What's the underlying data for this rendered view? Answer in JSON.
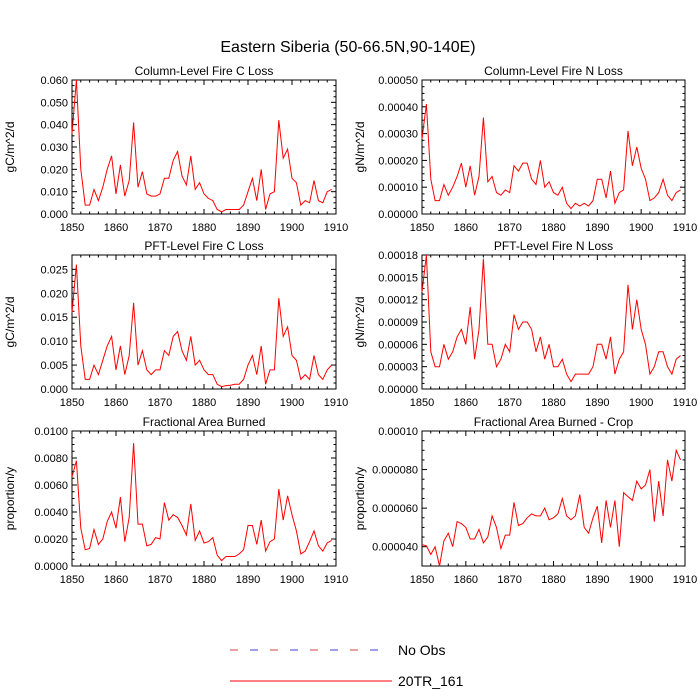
{
  "figure": {
    "title": "Eastern Siberia (50-66.5N,90-140E)",
    "legend": [
      {
        "label": "No Obs",
        "style": "dashed",
        "colors": [
          "#d04040",
          "#4040d0"
        ]
      },
      {
        "label": "20TR_161",
        "style": "solid",
        "color": "#ff0000"
      }
    ]
  },
  "chart_data": [
    {
      "type": "line",
      "title": "Column-Level Fire C Loss",
      "xlabel": "",
      "ylabel": "gC/m^2/d",
      "xlim": [
        1850,
        1910
      ],
      "ylim": [
        0,
        0.06
      ],
      "xticks": [
        1850,
        1860,
        1870,
        1880,
        1890,
        1900,
        1910
      ],
      "xtick_labels": [
        "1850",
        "1860",
        "1870",
        "1880",
        "1890",
        "1900",
        "1910"
      ],
      "yticks": [
        0,
        0.01,
        0.02,
        0.03,
        0.04,
        0.05,
        0.06
      ],
      "ytick_labels": [
        "0.000",
        "0.010",
        "0.020",
        "0.030",
        "0.040",
        "0.050",
        "0.060"
      ],
      "series": [
        {
          "name": "20TR_161",
          "color": "#ff0000",
          "x": [
            1850,
            1851,
            1852,
            1853,
            1854,
            1855,
            1856,
            1857,
            1858,
            1859,
            1860,
            1861,
            1862,
            1863,
            1864,
            1865,
            1866,
            1867,
            1868,
            1869,
            1870,
            1871,
            1872,
            1873,
            1874,
            1875,
            1876,
            1877,
            1878,
            1879,
            1880,
            1881,
            1882,
            1883,
            1884,
            1885,
            1886,
            1887,
            1888,
            1889,
            1890,
            1891,
            1892,
            1893,
            1894,
            1895,
            1896,
            1897,
            1898,
            1899,
            1900,
            1901,
            1902,
            1903,
            1904,
            1905,
            1906,
            1907,
            1908,
            1909
          ],
          "y": [
            0.036,
            0.06,
            0.02,
            0.004,
            0.004,
            0.011,
            0.006,
            0.012,
            0.02,
            0.026,
            0.009,
            0.022,
            0.008,
            0.015,
            0.041,
            0.012,
            0.019,
            0.009,
            0.008,
            0.008,
            0.009,
            0.016,
            0.016,
            0.024,
            0.028,
            0.017,
            0.013,
            0.026,
            0.011,
            0.014,
            0.009,
            0.007,
            0.006,
            0.002,
            0.001,
            0.002,
            0.002,
            0.002,
            0.002,
            0.004,
            0.01,
            0.016,
            0.006,
            0.02,
            0.002,
            0.009,
            0.01,
            0.042,
            0.025,
            0.029,
            0.016,
            0.014,
            0.004,
            0.006,
            0.005,
            0.015,
            0.006,
            0.005,
            0.01,
            0.011
          ]
        }
      ]
    },
    {
      "type": "line",
      "title": "Column-Level Fire N Loss",
      "xlabel": "",
      "ylabel": "gN/m^2/d",
      "xlim": [
        1850,
        1910
      ],
      "ylim": [
        0,
        0.0005
      ],
      "xticks": [
        1850,
        1860,
        1870,
        1880,
        1890,
        1900,
        1910
      ],
      "xtick_labels": [
        "1850",
        "1860",
        "1870",
        "1880",
        "1890",
        "1900",
        "1910"
      ],
      "yticks": [
        0,
        0.0001,
        0.0002,
        0.0003,
        0.0004,
        0.0005
      ],
      "ytick_labels": [
        "0.00000",
        "0.00010",
        "0.00020",
        "0.00030",
        "0.00040",
        "0.00050"
      ],
      "series": [
        {
          "name": "20TR_161",
          "color": "#ff0000",
          "x": [
            1850,
            1851,
            1852,
            1853,
            1854,
            1855,
            1856,
            1857,
            1858,
            1859,
            1860,
            1861,
            1862,
            1863,
            1864,
            1865,
            1866,
            1867,
            1868,
            1869,
            1870,
            1871,
            1872,
            1873,
            1874,
            1875,
            1876,
            1877,
            1878,
            1879,
            1880,
            1881,
            1882,
            1883,
            1884,
            1885,
            1886,
            1887,
            1888,
            1889,
            1890,
            1891,
            1892,
            1893,
            1894,
            1895,
            1896,
            1897,
            1898,
            1899,
            1900,
            1901,
            1902,
            1903,
            1904,
            1905,
            1906,
            1907,
            1908,
            1909
          ],
          "y": [
            0.00028,
            0.00041,
            0.00013,
            5e-05,
            5e-05,
            0.00011,
            7e-05,
            0.0001,
            0.00014,
            0.00019,
            0.0001,
            0.00018,
            7e-05,
            0.00014,
            0.00036,
            0.00012,
            0.00014,
            8e-05,
            7e-05,
            9e-05,
            8e-05,
            0.00018,
            0.00016,
            0.00019,
            0.00019,
            0.00013,
            0.00011,
            0.0002,
            0.0001,
            0.00012,
            8e-05,
            7e-05,
            0.0001,
            4e-05,
            2e-05,
            4e-05,
            3e-05,
            4e-05,
            3e-05,
            5e-05,
            0.00013,
            0.00013,
            6e-05,
            0.00016,
            4e-05,
            8e-05,
            9e-05,
            0.00031,
            0.00018,
            0.00025,
            0.00017,
            0.00013,
            5e-05,
            6e-05,
            8e-05,
            0.00013,
            7e-05,
            5e-05,
            8e-05,
            9e-05
          ]
        }
      ]
    },
    {
      "type": "line",
      "title": "PFT-Level Fire C Loss",
      "xlabel": "",
      "ylabel": "gC/m^2/d",
      "xlim": [
        1850,
        1910
      ],
      "ylim": [
        0,
        0.028
      ],
      "xticks": [
        1850,
        1860,
        1870,
        1880,
        1890,
        1900,
        1910
      ],
      "xtick_labels": [
        "1850",
        "1860",
        "1870",
        "1880",
        "1890",
        "1900",
        "1910"
      ],
      "yticks": [
        0,
        0.005,
        0.01,
        0.015,
        0.02,
        0.025
      ],
      "ytick_labels": [
        "0.000",
        "0.005",
        "0.010",
        "0.015",
        "0.020",
        "0.025"
      ],
      "series": [
        {
          "name": "20TR_161",
          "color": "#ff0000",
          "x": [
            1850,
            1851,
            1852,
            1853,
            1854,
            1855,
            1856,
            1857,
            1858,
            1859,
            1860,
            1861,
            1862,
            1863,
            1864,
            1865,
            1866,
            1867,
            1868,
            1869,
            1870,
            1871,
            1872,
            1873,
            1874,
            1875,
            1876,
            1877,
            1878,
            1879,
            1880,
            1881,
            1882,
            1883,
            1884,
            1885,
            1886,
            1887,
            1888,
            1889,
            1890,
            1891,
            1892,
            1893,
            1894,
            1895,
            1896,
            1897,
            1898,
            1899,
            1900,
            1901,
            1902,
            1903,
            1904,
            1905,
            1906,
            1907,
            1908,
            1909
          ],
          "y": [
            0.016,
            0.026,
            0.009,
            0.002,
            0.002,
            0.005,
            0.003,
            0.006,
            0.009,
            0.011,
            0.004,
            0.009,
            0.003,
            0.007,
            0.018,
            0.005,
            0.008,
            0.004,
            0.003,
            0.004,
            0.004,
            0.008,
            0.007,
            0.011,
            0.012,
            0.008,
            0.006,
            0.011,
            0.005,
            0.006,
            0.004,
            0.003,
            0.003,
            0.001,
            0.0005,
            0.0007,
            0.0008,
            0.001,
            0.001,
            0.002,
            0.005,
            0.007,
            0.003,
            0.009,
            0.001,
            0.004,
            0.004,
            0.019,
            0.011,
            0.013,
            0.007,
            0.006,
            0.002,
            0.003,
            0.002,
            0.007,
            0.003,
            0.002,
            0.004,
            0.005
          ]
        }
      ]
    },
    {
      "type": "line",
      "title": "PFT-Level Fire N Loss",
      "xlabel": "",
      "ylabel": "gN/m^2/d",
      "xlim": [
        1850,
        1910
      ],
      "ylim": [
        0,
        0.00018
      ],
      "xticks": [
        1850,
        1860,
        1870,
        1880,
        1890,
        1900,
        1910
      ],
      "xtick_labels": [
        "1850",
        "1860",
        "1870",
        "1880",
        "1890",
        "1900",
        "1910"
      ],
      "yticks": [
        0,
        3e-05,
        6e-05,
        9e-05,
        0.00012,
        0.00015,
        0.00018
      ],
      "ytick_labels": [
        "0.00000",
        "0.00003",
        "0.00006",
        "0.00009",
        "0.00012",
        "0.00015",
        "0.00018"
      ],
      "series": [
        {
          "name": "20TR_161",
          "color": "#ff0000",
          "x": [
            1850,
            1851,
            1852,
            1853,
            1854,
            1855,
            1856,
            1857,
            1858,
            1859,
            1860,
            1861,
            1862,
            1863,
            1864,
            1865,
            1866,
            1867,
            1868,
            1869,
            1870,
            1871,
            1872,
            1873,
            1874,
            1875,
            1876,
            1877,
            1878,
            1879,
            1880,
            1881,
            1882,
            1883,
            1884,
            1885,
            1886,
            1887,
            1888,
            1889,
            1890,
            1891,
            1892,
            1893,
            1894,
            1895,
            1896,
            1897,
            1898,
            1899,
            1900,
            1901,
            1902,
            1903,
            1904,
            1905,
            1906,
            1907,
            1908,
            1909
          ],
          "y": [
            0.00013,
            0.00018,
            5e-05,
            3e-05,
            3e-05,
            6e-05,
            4e-05,
            5e-05,
            7e-05,
            8e-05,
            6e-05,
            0.00011,
            4e-05,
            8e-05,
            0.000175,
            6e-05,
            6e-05,
            3e-05,
            4e-05,
            6e-05,
            5e-05,
            0.0001,
            8e-05,
            9e-05,
            9e-05,
            8e-05,
            5e-05,
            7e-05,
            4e-05,
            6e-05,
            3e-05,
            3e-05,
            4e-05,
            2e-05,
            1e-05,
            2e-05,
            2e-05,
            2e-05,
            2e-05,
            3e-05,
            6e-05,
            6e-05,
            4e-05,
            7e-05,
            2e-05,
            4e-05,
            5e-05,
            0.00014,
            8e-05,
            0.00012,
            8e-05,
            6e-05,
            2e-05,
            3e-05,
            5e-05,
            5e-05,
            3e-05,
            2e-05,
            4e-05,
            4.5e-05
          ]
        }
      ]
    },
    {
      "type": "line",
      "title": "Fractional Area Burned",
      "xlabel": "",
      "ylabel": "proportion/y",
      "xlim": [
        1850,
        1910
      ],
      "ylim": [
        0,
        0.01
      ],
      "xticks": [
        1850,
        1860,
        1870,
        1880,
        1890,
        1900,
        1910
      ],
      "xtick_labels": [
        "1850",
        "1860",
        "1870",
        "1880",
        "1890",
        "1900",
        "1910"
      ],
      "yticks": [
        0,
        0.002,
        0.004,
        0.006,
        0.008,
        0.01
      ],
      "ytick_labels": [
        "0.0000",
        "0.0020",
        "0.0040",
        "0.0060",
        "0.0080",
        "0.0100"
      ],
      "series": [
        {
          "name": "20TR_161",
          "color": "#ff0000",
          "x": [
            1850,
            1851,
            1852,
            1853,
            1854,
            1855,
            1856,
            1857,
            1858,
            1859,
            1860,
            1861,
            1862,
            1863,
            1864,
            1865,
            1866,
            1867,
            1868,
            1869,
            1870,
            1871,
            1872,
            1873,
            1874,
            1875,
            1876,
            1877,
            1878,
            1879,
            1880,
            1881,
            1882,
            1883,
            1884,
            1885,
            1886,
            1887,
            1888,
            1889,
            1890,
            1891,
            1892,
            1893,
            1894,
            1895,
            1896,
            1897,
            1898,
            1899,
            1900,
            1901,
            1902,
            1903,
            1904,
            1905,
            1906,
            1907,
            1908,
            1909
          ],
          "y": [
            0.0066,
            0.0078,
            0.0028,
            0.0012,
            0.0013,
            0.0027,
            0.0016,
            0.002,
            0.0033,
            0.004,
            0.0028,
            0.0051,
            0.0018,
            0.0036,
            0.0091,
            0.0031,
            0.0031,
            0.0015,
            0.0016,
            0.0021,
            0.002,
            0.0047,
            0.0034,
            0.0038,
            0.0036,
            0.003,
            0.0023,
            0.0046,
            0.0019,
            0.0026,
            0.0017,
            0.0018,
            0.0021,
            0.0008,
            0.0004,
            0.0007,
            0.0007,
            0.0007,
            0.0009,
            0.0012,
            0.003,
            0.003,
            0.0016,
            0.0034,
            0.0011,
            0.0018,
            0.002,
            0.0057,
            0.0034,
            0.0052,
            0.0038,
            0.0026,
            0.0009,
            0.0011,
            0.0018,
            0.0026,
            0.0015,
            0.0011,
            0.0017,
            0.0019
          ]
        }
      ]
    },
    {
      "type": "line",
      "title": "Fractional Area Burned - Crop",
      "xlabel": "",
      "ylabel": "proportion/y",
      "xlim": [
        1850,
        1910
      ],
      "ylim": [
        3e-05,
        0.0001
      ],
      "xticks": [
        1850,
        1860,
        1870,
        1880,
        1890,
        1900,
        1910
      ],
      "xtick_labels": [
        "1850",
        "1860",
        "1870",
        "1880",
        "1890",
        "1900",
        "1910"
      ],
      "yticks": [
        4e-05,
        6e-05,
        8e-05,
        0.0001
      ],
      "ytick_labels": [
        "0.000040",
        "0.000060",
        "0.000080",
        "0.00010"
      ],
      "series": [
        {
          "name": "20TR_161",
          "color": "#ff0000",
          "x": [
            1850,
            1851,
            1852,
            1853,
            1854,
            1855,
            1856,
            1857,
            1858,
            1859,
            1860,
            1861,
            1862,
            1863,
            1864,
            1865,
            1866,
            1867,
            1868,
            1869,
            1870,
            1871,
            1872,
            1873,
            1874,
            1875,
            1876,
            1877,
            1878,
            1879,
            1880,
            1881,
            1882,
            1883,
            1884,
            1885,
            1886,
            1887,
            1888,
            1889,
            1890,
            1891,
            1892,
            1893,
            1894,
            1895,
            1896,
            1897,
            1898,
            1899,
            1900,
            1901,
            1902,
            1903,
            1904,
            1905,
            1906,
            1907,
            1908,
            1909
          ],
          "y": [
            4.1e-05,
            4.05e-05,
            3.6e-05,
            4e-05,
            3e-05,
            4.3e-05,
            4.7e-05,
            4e-05,
            5.3e-05,
            5.2e-05,
            5e-05,
            4.4e-05,
            4.4e-05,
            4.9e-05,
            4.2e-05,
            4.5e-05,
            5.6e-05,
            5e-05,
            3.9e-05,
            4.6e-05,
            4.6e-05,
            6.3e-05,
            5.1e-05,
            5.2e-05,
            5.5e-05,
            5.7e-05,
            5.6e-05,
            5.6e-05,
            6e-05,
            5.4e-05,
            5.5e-05,
            5.7e-05,
            6.5e-05,
            5.6e-05,
            5.4e-05,
            5.6e-05,
            6.7e-05,
            5e-05,
            4.7e-05,
            5.5e-05,
            6.1e-05,
            4.2e-05,
            6.4e-05,
            5e-05,
            6.4e-05,
            4e-05,
            6.8e-05,
            6.6e-05,
            6.4e-05,
            7.4e-05,
            7e-05,
            7.2e-05,
            8e-05,
            5.3e-05,
            7.4e-05,
            5.6e-05,
            8.5e-05,
            7.4e-05,
            9e-05,
            8.5e-05
          ]
        }
      ]
    }
  ]
}
